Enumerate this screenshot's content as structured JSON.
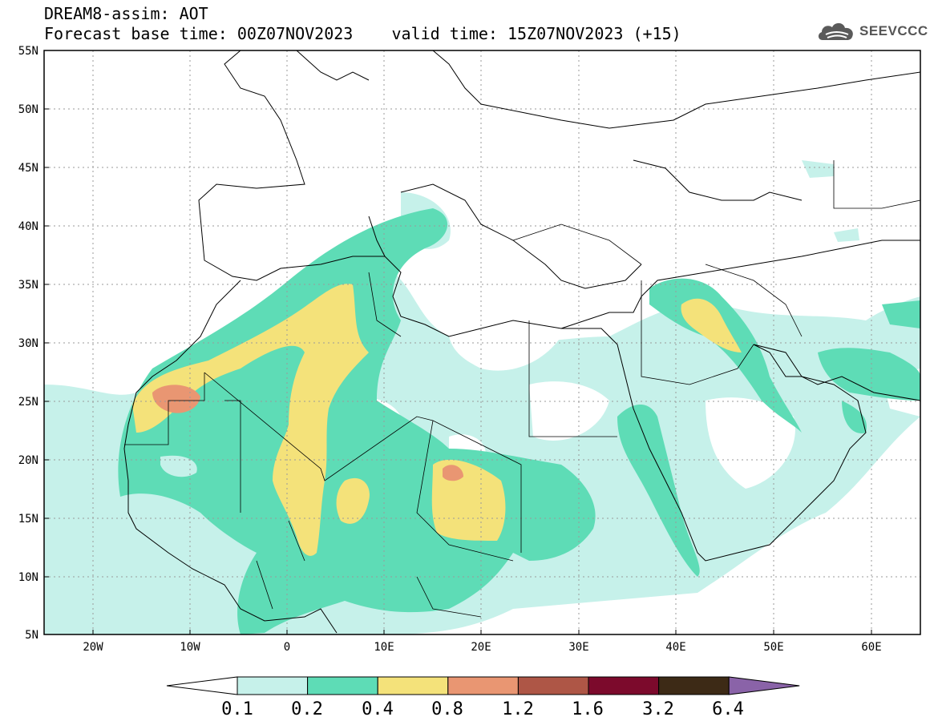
{
  "header": {
    "title": "DREAM8-assim: AOT",
    "base_time_label": "Forecast base time: 00Z07NOV2023",
    "valid_time_label": "valid time: 15Z07NOV2023 (+15)"
  },
  "logo": {
    "text": "SEEVCCC",
    "icon": "cloud-icon"
  },
  "map": {
    "lat_labels": [
      "55N",
      "50N",
      "45N",
      "40N",
      "35N",
      "30N",
      "25N",
      "20N",
      "15N",
      "10N",
      "5N"
    ],
    "lon_labels": [
      "20W",
      "10W",
      "0",
      "10E",
      "20E",
      "30E",
      "40E",
      "50E",
      "60E"
    ],
    "extent": {
      "lon_min": -25,
      "lon_max": 65,
      "lat_min": 5,
      "lat_max": 55
    }
  },
  "legend": {
    "colors": [
      "#ffffff",
      "#c6f1ea",
      "#5edcb6",
      "#f4e27a",
      "#e99672",
      "#ae5646",
      "#7c0a2c",
      "#3d2a16",
      "#8a63a8"
    ],
    "labels": [
      "0.1",
      "0.2",
      "0.4",
      "0.8",
      "1.2",
      "1.6",
      "3.2",
      "6.4"
    ]
  },
  "palette": {
    "v01": "#c6f1ea",
    "v02": "#5edcb6",
    "v04": "#f4e27a",
    "v08": "#e99672"
  }
}
